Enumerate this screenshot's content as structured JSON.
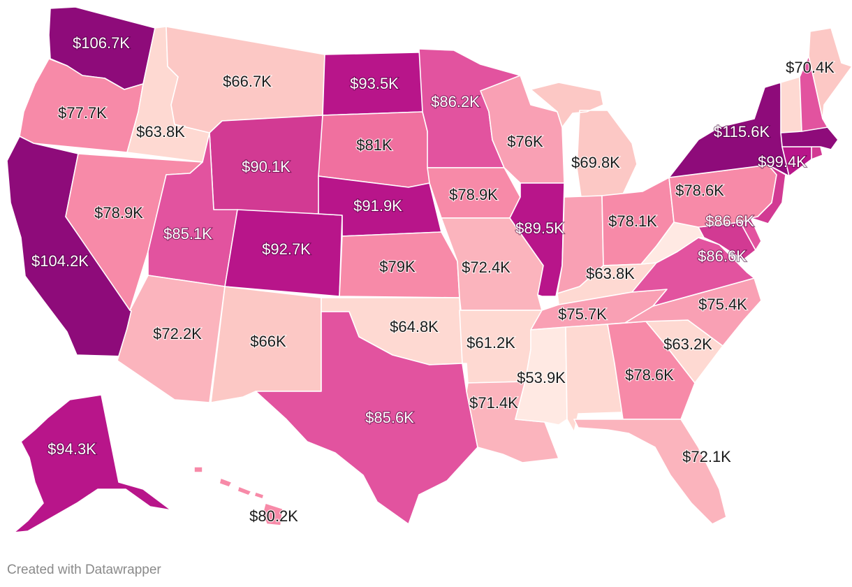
{
  "credit": "Created with Datawrapper",
  "colors": {
    "v1": "#8e0b7a",
    "v2": "#b8158a",
    "v3": "#d23a93",
    "v4": "#e2539f",
    "v5": "#f0709f",
    "v6": "#f78aa8",
    "v7": "#f9a0b4",
    "v8": "#fbb4bd",
    "v9": "#fcc8c5",
    "v10": "#fed9d2",
    "v11": "#ffe9e3"
  },
  "states": [
    {
      "id": "WA",
      "value": "$106.7K",
      "color": "v1"
    },
    {
      "id": "OR",
      "value": "$77.7K",
      "color": "v6"
    },
    {
      "id": "CA",
      "value": "$104.2K",
      "color": "v1"
    },
    {
      "id": "ID",
      "value": "$63.8K",
      "color": "v10"
    },
    {
      "id": "NV",
      "value": "$78.9K",
      "color": "v6"
    },
    {
      "id": "MT",
      "value": "$66.7K",
      "color": "v9"
    },
    {
      "id": "WY",
      "value": "$90.1K",
      "color": "v3"
    },
    {
      "id": "UT",
      "value": "$85.1K",
      "color": "v4"
    },
    {
      "id": "CO",
      "value": "$92.7K",
      "color": "v2"
    },
    {
      "id": "AZ",
      "value": "$72.2K",
      "color": "v8"
    },
    {
      "id": "NM",
      "value": "$66K",
      "color": "v9"
    },
    {
      "id": "ND",
      "value": "$93.5K",
      "color": "v2"
    },
    {
      "id": "SD",
      "value": "$81K",
      "color": "v5"
    },
    {
      "id": "NE",
      "value": "$91.9K",
      "color": "v2"
    },
    {
      "id": "KS",
      "value": "$79K",
      "color": "v6"
    },
    {
      "id": "OK",
      "value": "$64.8K",
      "color": "v10"
    },
    {
      "id": "TX",
      "value": "$85.6K",
      "color": "v4"
    },
    {
      "id": "MN",
      "value": "$86.2K",
      "color": "v4"
    },
    {
      "id": "IA",
      "value": "$78.9K",
      "color": "v6"
    },
    {
      "id": "MO",
      "value": "$72.4K",
      "color": "v8"
    },
    {
      "id": "AR",
      "value": "$61.2K",
      "color": "v10"
    },
    {
      "id": "LA",
      "value": "$71.4K",
      "color": "v8"
    },
    {
      "id": "WI",
      "value": "$76K",
      "color": "v7"
    },
    {
      "id": "IL",
      "value": "$89.5K",
      "color": "v2"
    },
    {
      "id": "MI",
      "value": "$69.8K",
      "color": "v9"
    },
    {
      "id": "IN",
      "value": "",
      "color": "v7"
    },
    {
      "id": "OH",
      "value": "$78.1K",
      "color": "v6"
    },
    {
      "id": "KY",
      "value": "$63.8K",
      "color": "v10"
    },
    {
      "id": "TN",
      "value": "$75.7K",
      "color": "v7"
    },
    {
      "id": "MS",
      "value": "$53.9K",
      "color": "v11"
    },
    {
      "id": "AL",
      "value": "",
      "color": "v10"
    },
    {
      "id": "GA",
      "value": "$78.6K",
      "color": "v6"
    },
    {
      "id": "FL",
      "value": "$72.1K",
      "color": "v8"
    },
    {
      "id": "SC",
      "value": "$63.2K",
      "color": "v10"
    },
    {
      "id": "NC",
      "value": "$75.4K",
      "color": "v7"
    },
    {
      "id": "VA",
      "value": "$86.6K",
      "color": "v4"
    },
    {
      "id": "WV",
      "value": "",
      "color": "v11"
    },
    {
      "id": "MD",
      "value": "$86.6K",
      "color": "v3"
    },
    {
      "id": "DE",
      "value": "",
      "color": "v4"
    },
    {
      "id": "PA",
      "value": "$78.6K",
      "color": "v6"
    },
    {
      "id": "NJ",
      "value": "",
      "color": "v3"
    },
    {
      "id": "NY",
      "value": "$115.6K",
      "color": "v1"
    },
    {
      "id": "CT",
      "value": "",
      "color": "v2"
    },
    {
      "id": "RI",
      "value": "",
      "color": "v3"
    },
    {
      "id": "MA",
      "value": "$99.4K",
      "color": "v1"
    },
    {
      "id": "VT",
      "value": "",
      "color": "v10"
    },
    {
      "id": "NH",
      "value": "",
      "color": "v4"
    },
    {
      "id": "ME",
      "value": "$70.4K",
      "color": "v9"
    },
    {
      "id": "AK",
      "value": "$94.3K",
      "color": "v2"
    },
    {
      "id": "HI",
      "value": "$80.2K",
      "color": "v6"
    }
  ]
}
